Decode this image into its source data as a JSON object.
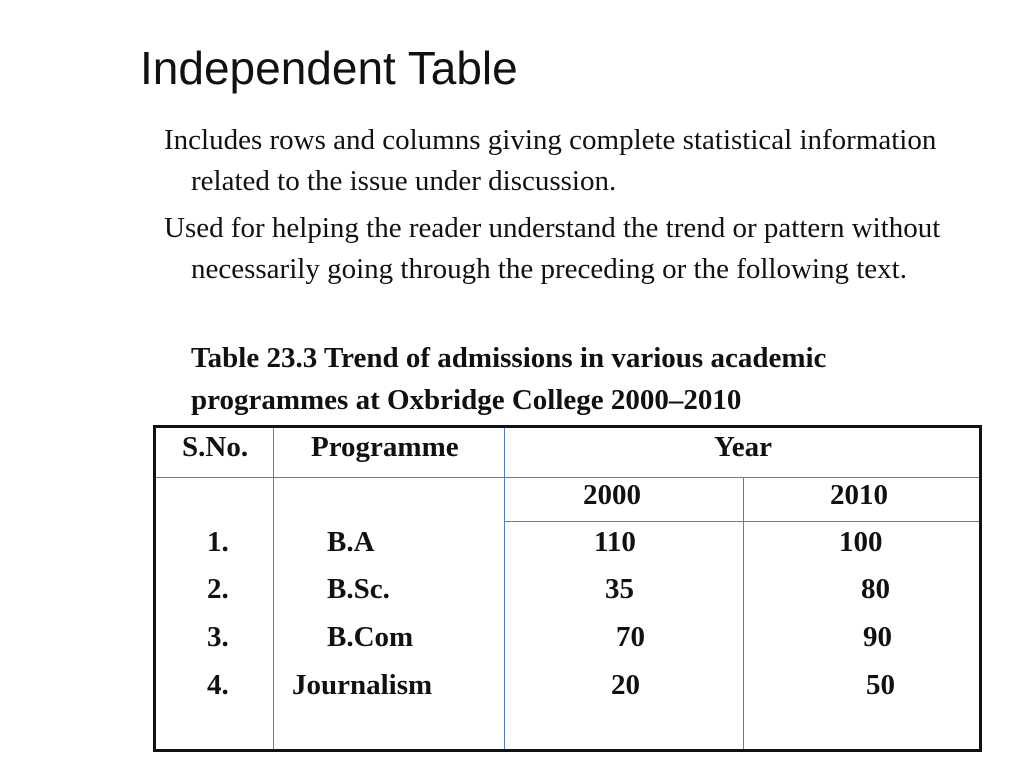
{
  "slide": {
    "title": "Independent Table",
    "paragraphs": [
      "Includes rows and columns giving complete statistical information related to the issue under discussion.",
      "Used for helping the reader understand the trend or pattern without necessarily going through the preceding or the following text."
    ],
    "caption": "Table 23.3 Trend of admissions in various academic programmes at Oxbridge College 2000–2010"
  },
  "table": {
    "headers": {
      "sno": "S.No.",
      "programme": "Programme",
      "year": "Year"
    },
    "years": [
      "2000",
      "2010"
    ],
    "rows": [
      {
        "sno": "1.",
        "programme": "B.A",
        "y2000": "110",
        "y2010": "100"
      },
      {
        "sno": "2.",
        "programme": "B.Sc.",
        "y2000": "35",
        "y2010": "80"
      },
      {
        "sno": "3.",
        "programme": "B.Com",
        "y2000": "70",
        "y2010": "90"
      },
      {
        "sno": "4.",
        "programme": "Journalism",
        "y2000": "20",
        "y2010": "50"
      }
    ],
    "border_color": "#111111",
    "grid_color": "#4f81bd"
  }
}
